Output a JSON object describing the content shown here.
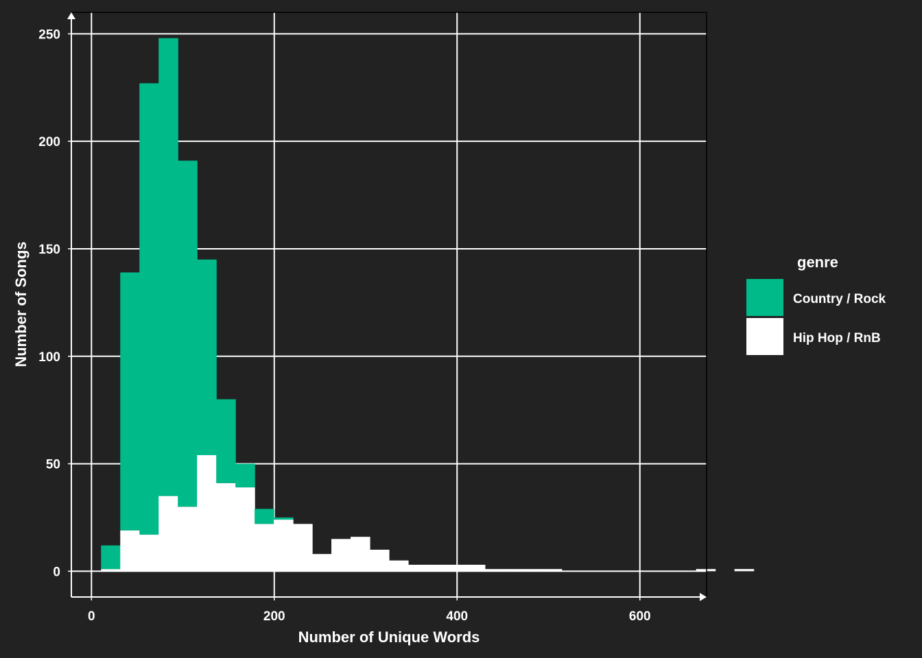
{
  "chart_data": {
    "type": "bar",
    "stacked": true,
    "histogram": true,
    "xlabel": "Number of Unique Words",
    "ylabel": "Number of Songs",
    "xlim": [
      -22,
      673
    ],
    "ylim": [
      -12,
      260
    ],
    "xticks": [
      0,
      200,
      400,
      600
    ],
    "yticks": [
      0,
      50,
      100,
      150,
      200,
      250
    ],
    "grid": true,
    "legend": {
      "title": "genre",
      "placement": "right",
      "entries": [
        {
          "name": "Country / Rock",
          "color": "#00BA8A"
        },
        {
          "name": "Hip Hop / RnB",
          "color": "#FFFFFF"
        }
      ]
    },
    "bin_start": 10.5,
    "bin_width": 21,
    "series": [
      {
        "name": "Hip Hop / RnB",
        "color": "#FFFFFF",
        "values": [
          1,
          19,
          17,
          35,
          30,
          54,
          41,
          39,
          22,
          24,
          22,
          8,
          15,
          16,
          10,
          5,
          3,
          3,
          3,
          3,
          1,
          1,
          1,
          1,
          0,
          0,
          0,
          0,
          0,
          0,
          0,
          1,
          0,
          1,
          0
        ]
      },
      {
        "name": "Country / Rock",
        "color": "#00BA8A",
        "values": [
          11,
          120,
          210,
          213,
          161,
          91,
          39,
          11,
          7,
          1,
          0,
          0,
          0,
          0,
          0,
          0,
          0,
          0,
          0,
          0,
          0,
          0,
          0,
          0,
          0,
          0,
          0,
          0,
          0,
          0,
          0,
          0,
          0,
          0,
          0
        ]
      }
    ]
  }
}
